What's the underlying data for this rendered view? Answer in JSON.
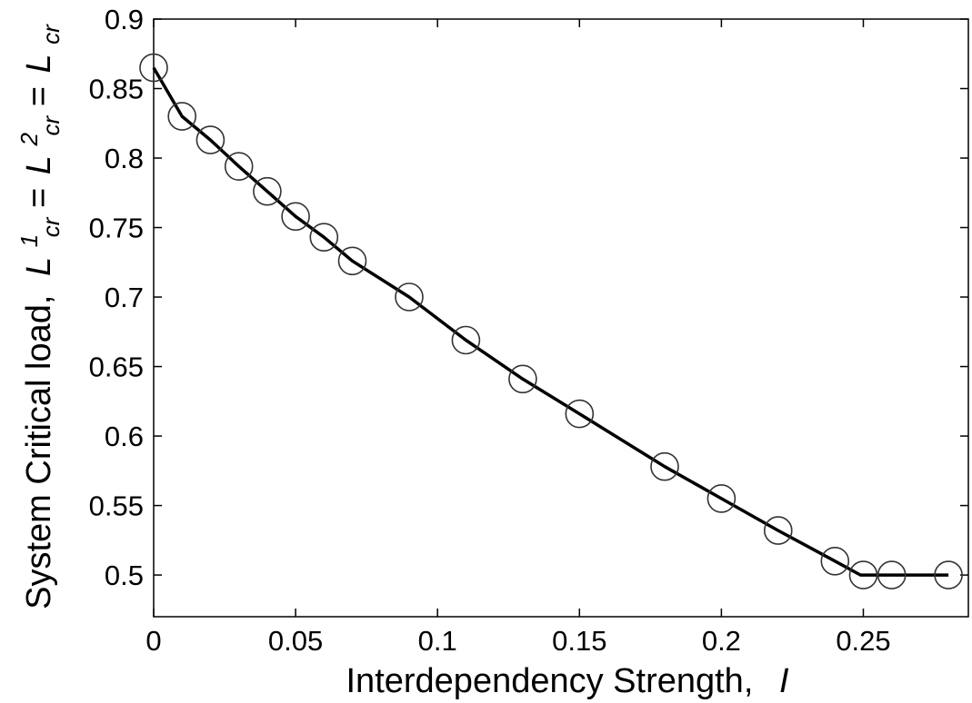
{
  "chart_data": {
    "type": "line",
    "markers": "open-circle",
    "series": [
      {
        "x": [
          0,
          0.01,
          0.02,
          0.03,
          0.04,
          0.05,
          0.06,
          0.07,
          0.09,
          0.11,
          0.13,
          0.15,
          0.18,
          0.2,
          0.22,
          0.24,
          0.25,
          0.26,
          0.28
        ],
        "y": [
          0.865,
          0.83,
          0.813,
          0.794,
          0.776,
          0.758,
          0.743,
          0.726,
          0.7,
          0.669,
          0.641,
          0.616,
          0.578,
          0.555,
          0.532,
          0.51,
          0.5,
          0.5,
          0.5
        ]
      }
    ],
    "line_x": [
      0,
      0.01,
      0.02,
      0.03,
      0.04,
      0.05,
      0.06,
      0.07,
      0.09,
      0.11,
      0.13,
      0.15,
      0.18,
      0.2,
      0.22,
      0.24,
      0.249,
      0.26,
      0.28
    ],
    "line_y": [
      0.865,
      0.83,
      0.813,
      0.794,
      0.776,
      0.758,
      0.743,
      0.726,
      0.7,
      0.669,
      0.641,
      0.616,
      0.578,
      0.555,
      0.532,
      0.51,
      0.5,
      0.5,
      0.5
    ],
    "xlim": [
      0,
      0.287
    ],
    "ylim": [
      0.47,
      0.9
    ],
    "xticks": [
      0,
      0.05,
      0.1,
      0.15,
      0.2,
      0.25
    ],
    "xtick_labels": [
      "0",
      "0.05",
      "0.1",
      "0.15",
      "0.2",
      "0.25"
    ],
    "yticks": [
      0.5,
      0.55,
      0.6,
      0.65,
      0.7,
      0.75,
      0.8,
      0.85,
      0.9
    ],
    "ytick_labels": [
      "0.5",
      "0.55",
      "0.6",
      "0.65",
      "0.7",
      "0.75",
      "0.8",
      "0.85",
      "0.9"
    ],
    "xlabel": {
      "text": "Interdependency Strength,",
      "symbol": "I"
    },
    "ylabel": {
      "prefix": "System Critical load,",
      "L": "L",
      "sub_cr": "cr",
      "sup_1": "1",
      "sup_2": "2",
      "equals": "="
    },
    "grid": false,
    "legend": "none",
    "colors": {
      "line": "#000000",
      "marker_edge": "#333333",
      "marker_fill": "none",
      "axes": "#000000",
      "background": "#ffffff"
    }
  }
}
